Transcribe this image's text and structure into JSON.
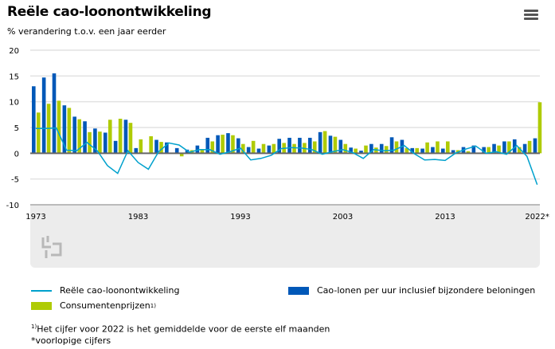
{
  "title": "Reële cao-loonontwikkeling",
  "subtitle": "% verandering t.o.v. een jaar eerder",
  "menu_icon": "hamburger-icon",
  "legend": {
    "line": "Reële cao-loonontwikkeling",
    "blue": "Cao-lonen per uur inclusief bijzondere beloningen",
    "green": "Consumentenprijzen",
    "green_sup": "1)"
  },
  "footnote": {
    "sup": "1)",
    "text": "Het cijfer voor 2022 is het gemiddelde voor de eerste elf maanden",
    "note2": "*voorlopige cijfers"
  },
  "chart_data": {
    "type": "bar",
    "ylim": [
      -10,
      20
    ],
    "yticks": [
      20,
      15,
      10,
      5,
      0,
      -5,
      -10
    ],
    "xtick_labels": [
      "1973",
      "1983",
      "1993",
      "2003",
      "2013",
      "2022*"
    ],
    "grid": true,
    "legend_placement": "bottom",
    "colors": {
      "blue": "#0058b8",
      "green": "#afcb05",
      "line": "#00a1cd"
    },
    "categories": [
      1973,
      1974,
      1975,
      1976,
      1977,
      1978,
      1979,
      1980,
      1981,
      1982,
      1983,
      1984,
      1985,
      1986,
      1987,
      1988,
      1989,
      1990,
      1991,
      1992,
      1993,
      1994,
      1995,
      1996,
      1997,
      1998,
      1999,
      2000,
      2001,
      2002,
      2003,
      2004,
      2005,
      2006,
      2007,
      2008,
      2009,
      2010,
      2011,
      2012,
      2013,
      2014,
      2015,
      2016,
      2017,
      2018,
      2019,
      2020,
      2021,
      2022
    ],
    "series": [
      {
        "name": "Cao-lonen per uur inclusief bijzondere beloningen",
        "type": "bar",
        "values": [
          13.0,
          14.7,
          15.5,
          9.3,
          7.1,
          6.2,
          4.8,
          4.0,
          2.4,
          6.5,
          1.0,
          0.0,
          2.6,
          2.1,
          1.0,
          0.7,
          1.5,
          3.0,
          3.5,
          3.9,
          2.9,
          1.2,
          0.9,
          1.5,
          2.8,
          3.0,
          3.0,
          3.0,
          4.1,
          3.4,
          2.6,
          1.1,
          0.5,
          1.8,
          1.8,
          3.1,
          2.6,
          1.0,
          0.9,
          1.2,
          0.9,
          0.6,
          1.2,
          1.5,
          1.2,
          1.8,
          2.3,
          2.7,
          1.8,
          2.9
        ]
      },
      {
        "name": "Consumentenprijzen",
        "type": "bar",
        "values": [
          7.9,
          9.6,
          10.2,
          8.8,
          6.6,
          4.1,
          4.2,
          6.5,
          6.7,
          5.9,
          2.7,
          3.3,
          2.2,
          0.1,
          -0.6,
          0.6,
          0.8,
          2.3,
          3.6,
          3.5,
          1.8,
          2.4,
          1.8,
          1.8,
          2.0,
          1.8,
          2.0,
          2.3,
          4.3,
          3.2,
          1.8,
          0.9,
          1.5,
          1.1,
          1.4,
          2.3,
          1.0,
          1.0,
          2.1,
          2.3,
          2.3,
          0.6,
          0.4,
          0.1,
          1.2,
          1.5,
          2.3,
          1.2,
          2.4,
          9.9
        ]
      },
      {
        "name": "Reële cao-loonontwikkeling",
        "type": "line",
        "values": [
          4.8,
          4.8,
          4.9,
          0.6,
          0.5,
          2.1,
          0.5,
          -2.4,
          -3.9,
          0.5,
          -1.8,
          -3.1,
          0.3,
          2.0,
          1.6,
          0.2,
          0.7,
          0.7,
          -0.2,
          0.3,
          1.0,
          -1.3,
          -1.0,
          -0.4,
          0.9,
          1.1,
          1.0,
          0.7,
          -0.2,
          0.3,
          0.7,
          0.1,
          -1.0,
          0.7,
          0.5,
          0.6,
          1.5,
          -0.1,
          -1.3,
          -1.2,
          -1.4,
          0.0,
          0.8,
          1.4,
          0.0,
          0.3,
          -0.2,
          1.5,
          -0.6,
          -6.1
        ]
      }
    ]
  }
}
